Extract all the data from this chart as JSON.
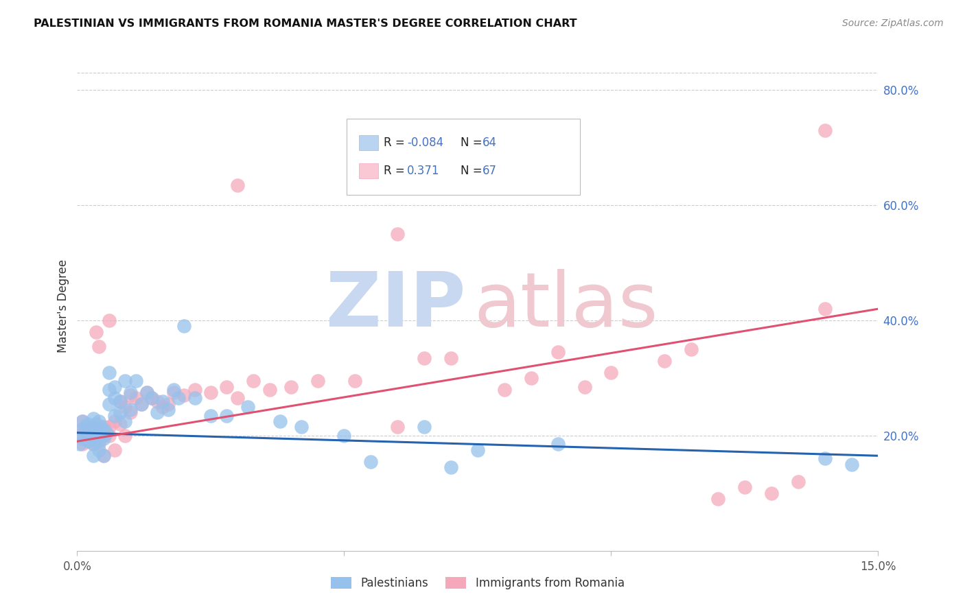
{
  "title": "PALESTINIAN VS IMMIGRANTS FROM ROMANIA MASTER'S DEGREE CORRELATION CHART",
  "source": "Source: ZipAtlas.com",
  "ylabel": "Master's Degree",
  "xlim": [
    0.0,
    0.15
  ],
  "ylim": [
    0.0,
    0.85
  ],
  "xticks": [
    0.0,
    0.05,
    0.1,
    0.15
  ],
  "xticklabels": [
    "0.0%",
    "",
    "",
    "15.0%"
  ],
  "yticks_right": [
    0.2,
    0.4,
    0.6,
    0.8
  ],
  "yticklabels_right": [
    "20.0%",
    "40.0%",
    "60.0%",
    "80.0%"
  ],
  "blue_color": "#96C1EC",
  "pink_color": "#F5A8BC",
  "blue_line_color": "#2563AE",
  "pink_line_color": "#E05070",
  "grid_color": "#CCCCCC",
  "bg_color": "#FFFFFF",
  "blue_x": [
    0.0005,
    0.001,
    0.001,
    0.001,
    0.0015,
    0.0015,
    0.002,
    0.002,
    0.002,
    0.0025,
    0.0025,
    0.003,
    0.003,
    0.003,
    0.003,
    0.003,
    0.0035,
    0.0035,
    0.004,
    0.004,
    0.004,
    0.004,
    0.0045,
    0.0045,
    0.005,
    0.005,
    0.005,
    0.0055,
    0.006,
    0.006,
    0.006,
    0.007,
    0.007,
    0.007,
    0.008,
    0.008,
    0.009,
    0.009,
    0.01,
    0.01,
    0.011,
    0.012,
    0.013,
    0.014,
    0.015,
    0.016,
    0.017,
    0.018,
    0.019,
    0.02,
    0.022,
    0.025,
    0.028,
    0.032,
    0.038,
    0.042,
    0.05,
    0.055,
    0.065,
    0.07,
    0.075,
    0.09,
    0.14,
    0.145
  ],
  "blue_y": [
    0.185,
    0.195,
    0.21,
    0.225,
    0.2,
    0.215,
    0.19,
    0.205,
    0.22,
    0.195,
    0.21,
    0.185,
    0.2,
    0.215,
    0.23,
    0.165,
    0.205,
    0.22,
    0.19,
    0.21,
    0.225,
    0.175,
    0.2,
    0.215,
    0.195,
    0.21,
    0.165,
    0.205,
    0.28,
    0.31,
    0.255,
    0.285,
    0.265,
    0.235,
    0.26,
    0.24,
    0.295,
    0.225,
    0.275,
    0.245,
    0.295,
    0.255,
    0.275,
    0.265,
    0.24,
    0.26,
    0.245,
    0.28,
    0.265,
    0.39,
    0.265,
    0.235,
    0.235,
    0.25,
    0.225,
    0.215,
    0.2,
    0.155,
    0.215,
    0.145,
    0.175,
    0.185,
    0.16,
    0.15
  ],
  "pink_x": [
    0.0005,
    0.001,
    0.001,
    0.001,
    0.0015,
    0.0015,
    0.002,
    0.002,
    0.0025,
    0.0025,
    0.003,
    0.003,
    0.003,
    0.0035,
    0.0035,
    0.004,
    0.004,
    0.005,
    0.005,
    0.005,
    0.006,
    0.006,
    0.006,
    0.007,
    0.007,
    0.008,
    0.008,
    0.009,
    0.009,
    0.01,
    0.01,
    0.011,
    0.012,
    0.013,
    0.014,
    0.015,
    0.016,
    0.017,
    0.018,
    0.02,
    0.022,
    0.025,
    0.028,
    0.03,
    0.033,
    0.036,
    0.04,
    0.045,
    0.052,
    0.06,
    0.065,
    0.07,
    0.08,
    0.085,
    0.09,
    0.095,
    0.1,
    0.11,
    0.115,
    0.12,
    0.125,
    0.13,
    0.135,
    0.14,
    0.03,
    0.06,
    0.14
  ],
  "pink_y": [
    0.2,
    0.185,
    0.21,
    0.225,
    0.195,
    0.215,
    0.19,
    0.205,
    0.195,
    0.215,
    0.185,
    0.2,
    0.215,
    0.2,
    0.38,
    0.185,
    0.355,
    0.2,
    0.215,
    0.165,
    0.2,
    0.215,
    0.4,
    0.225,
    0.175,
    0.26,
    0.22,
    0.25,
    0.2,
    0.27,
    0.24,
    0.265,
    0.255,
    0.275,
    0.265,
    0.26,
    0.25,
    0.255,
    0.275,
    0.27,
    0.28,
    0.275,
    0.285,
    0.265,
    0.295,
    0.28,
    0.285,
    0.295,
    0.295,
    0.215,
    0.335,
    0.335,
    0.28,
    0.3,
    0.345,
    0.285,
    0.31,
    0.33,
    0.35,
    0.09,
    0.11,
    0.1,
    0.12,
    0.42,
    0.635,
    0.55,
    0.73
  ],
  "blue_trend_x": [
    0.0,
    0.15
  ],
  "blue_trend_y": [
    0.205,
    0.165
  ],
  "pink_trend_x": [
    0.0,
    0.15
  ],
  "pink_trend_y": [
    0.19,
    0.42
  ]
}
